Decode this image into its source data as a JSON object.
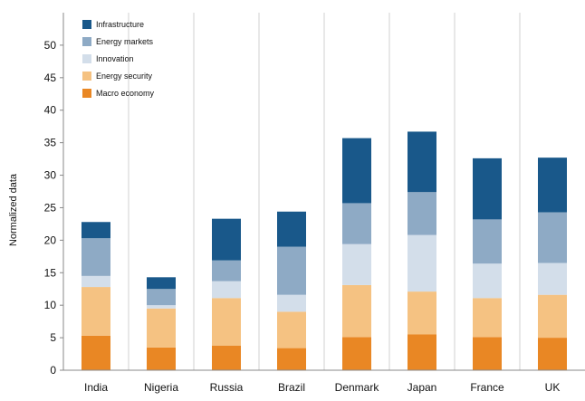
{
  "chart_data": {
    "type": "bar",
    "stacked": true,
    "title": "",
    "xlabel": "",
    "ylabel": "Normalized data",
    "ylim": [
      0,
      55
    ],
    "yticks": [
      0,
      5,
      10,
      15,
      20,
      25,
      30,
      35,
      40,
      45,
      50
    ],
    "grid": "vertical lines between country groups",
    "legend_position": "top-left",
    "categories": [
      "India",
      "Nigeria",
      "Russia",
      "Brazil",
      "Denmark",
      "Japan",
      "France",
      "UK"
    ],
    "series": [
      {
        "name": "Macro economy",
        "color": "#E98724",
        "values": [
          5.3,
          3.5,
          3.8,
          3.4,
          5.1,
          5.5,
          5.1,
          5.0
        ]
      },
      {
        "name": "Energy security",
        "color": "#F5C282",
        "values": [
          7.5,
          6.0,
          7.3,
          5.6,
          8.0,
          6.6,
          6.0,
          6.6
        ]
      },
      {
        "name": "Innovation",
        "color": "#D3DEEA",
        "values": [
          1.7,
          0.5,
          2.6,
          2.6,
          6.3,
          8.7,
          5.3,
          4.9
        ]
      },
      {
        "name": "Energy markets",
        "color": "#8EAAC5",
        "values": [
          5.8,
          2.5,
          3.2,
          7.4,
          6.3,
          6.6,
          6.8,
          7.8
        ]
      },
      {
        "name": "Infrastructure",
        "color": "#19588A",
        "values": [
          2.5,
          1.8,
          6.4,
          5.4,
          10.0,
          9.3,
          9.4,
          8.4
        ]
      }
    ],
    "legend_order": [
      "Infrastructure",
      "Energy markets",
      "Innovation",
      "Energy security",
      "Macro economy"
    ]
  }
}
